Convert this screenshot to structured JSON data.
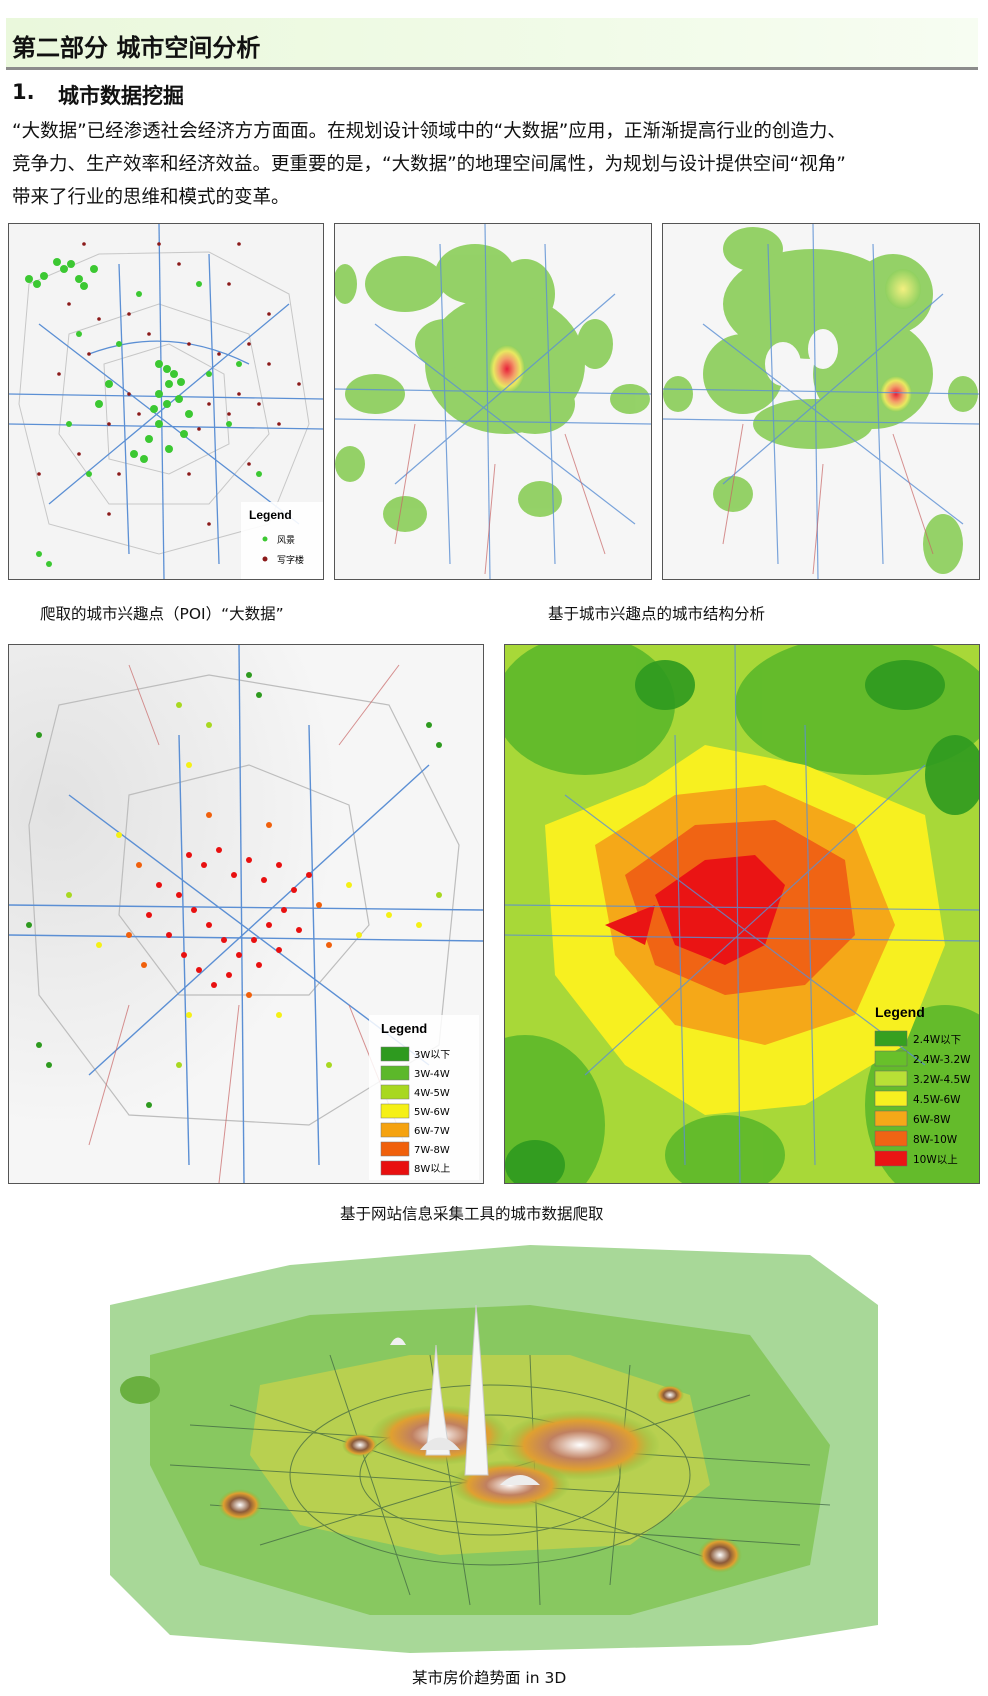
{
  "header": {
    "title": "第二部分 城市空间分析"
  },
  "section": {
    "number": "1.",
    "title": "城市数据挖掘"
  },
  "paragraph": {
    "line1": "“大数据”已经渗透社会经济方方面面。在规划设计领域中的“大数据”应用，正渐渐提高行业的创造力、",
    "line2": "竞争力、生产效率和经济效益。更重要的是，“大数据”的地理空间属性，为规划与设计提供空间“视角”",
    "line3": "带来了行业的思维和模式的变革。"
  },
  "map1": {
    "legend_title": "Legend",
    "legend_items": [
      {
        "label": "风景",
        "color": "#3cc832"
      },
      {
        "label": "写字楼",
        "color": "#8b1a1a"
      }
    ]
  },
  "captions": {
    "poi": "爬取的城市兴趣点（POI）“大数据”",
    "structure": "基于城市兴趣点的城市结构分析",
    "crawl": "基于网站信息采集工具的城市数据爬取",
    "price3d": "某市房价趋势面 in 3D"
  },
  "map4": {
    "legend_title": "Legend",
    "legend_items": [
      {
        "label": "3W以下",
        "color": "#2e9a1f"
      },
      {
        "label": "3W-4W",
        "color": "#5cb82a"
      },
      {
        "label": "4W-5W",
        "color": "#a8d820"
      },
      {
        "label": "5W-6W",
        "color": "#f5f015"
      },
      {
        "label": "6W-7W",
        "color": "#f5a20f"
      },
      {
        "label": "7W-8W",
        "color": "#f0600c"
      },
      {
        "label": "8W以上",
        "color": "#e81010"
      }
    ]
  },
  "map5": {
    "legend_title": "Legend",
    "legend_items": [
      {
        "label": "2.4W以下",
        "color": "#36a020"
      },
      {
        "label": "2.4W-3.2W",
        "color": "#68c02a"
      },
      {
        "label": "3.2W-4.5W",
        "color": "#b8e036"
      },
      {
        "label": "4.5W-6W",
        "color": "#f7f020"
      },
      {
        "label": "6W-8W",
        "color": "#f5a818"
      },
      {
        "label": "8W-10W",
        "color": "#f06414"
      },
      {
        "label": "10W以上",
        "color": "#ea1414"
      }
    ]
  }
}
